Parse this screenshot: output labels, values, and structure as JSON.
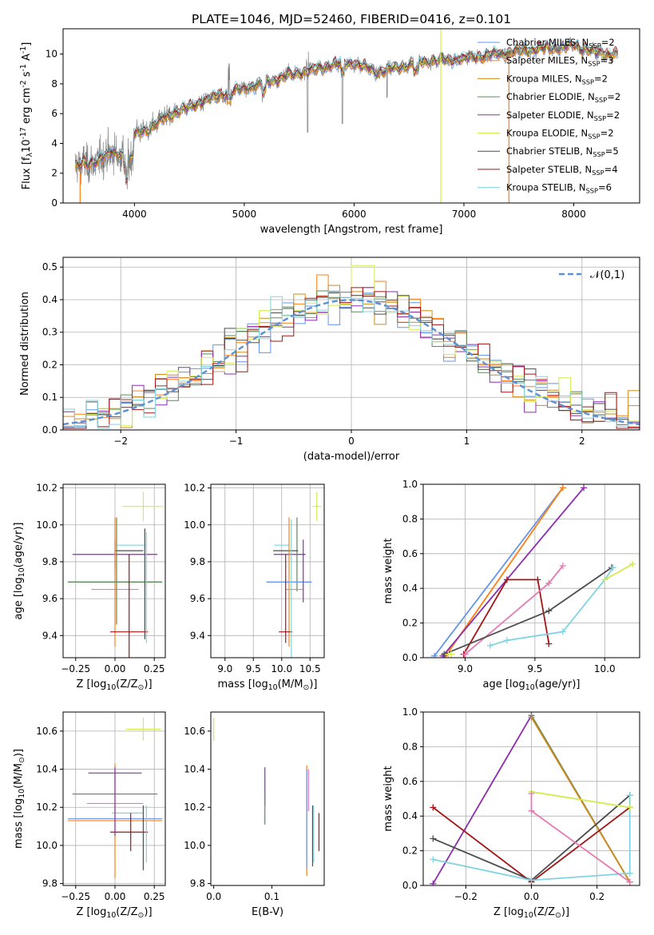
{
  "figure_title": "PLATE=1046, MJD=52460, FIBERID=0416, z=0.101",
  "colors": {
    "chabrier_miles": "#6495ed",
    "salpeter_miles": "#ff7f0e",
    "kroupa_miles": "#d08a1a",
    "chabrier_elodie": "#5a8a5a",
    "salpeter_elodie": "#8e2cb0",
    "kroupa_elodie": "#d4eb4e",
    "chabrier_stelib": "#4d4d4d",
    "salpeter_stelib": "#a31515",
    "kroupa_stelib": "#80d4e0",
    "pink": "#e67ab4",
    "data": "#808080"
  },
  "chart_data": [
    {
      "type": "line",
      "panel": "spectrum",
      "title": "PLATE=1046, MJD=52460, FIBERID=0416, z=0.101",
      "xlabel": "wavelength [Angstrom, rest frame]",
      "ylabel": "Flux [f$_\\lambda$10$^{-17}$ erg cm$^{-2}$ s$^{-1}$ A$^{-1}$]",
      "xlim": [
        3350,
        8600
      ],
      "ylim": [
        0,
        11.7
      ],
      "xticks": [
        4000,
        5000,
        6000,
        7000,
        8000
      ],
      "yticks": [
        0,
        2,
        4,
        6,
        8,
        10
      ],
      "legend_position": "top-right",
      "series": [
        {
          "name": "Chabrier MILES, N$_{SSP}$=2",
          "color": "#6495ed"
        },
        {
          "name": "Salpeter MILES, N$_{SSP}$=3",
          "color": "#ff7f0e"
        },
        {
          "name": "Kroupa MILES, N$_{SSP}$=2",
          "color": "#d08a1a"
        },
        {
          "name": "Chabrier ELODIE, N$_{SSP}$=2",
          "color": "#5a8a5a"
        },
        {
          "name": "Salpeter ELODIE, N$_{SSP}$=2",
          "color": "#8e2cb0"
        },
        {
          "name": "Kroupa ELODIE, N$_{SSP}$=2",
          "color": "#d4eb4e"
        },
        {
          "name": "Chabrier STELIB, N$_{SSP}$=5",
          "color": "#4d4d4d"
        },
        {
          "name": "Salpeter STELIB, N$_{SSP}$=4",
          "color": "#a31515"
        },
        {
          "name": "Kroupa STELIB, N$_{SSP}$=6",
          "color": "#80d4e0"
        }
      ],
      "continuum": {
        "x": [
          3450,
          3600,
          3700,
          3800,
          3900,
          4000,
          4100,
          4200,
          4300,
          4400,
          4500,
          4600,
          4800,
          5000,
          5200,
          5400,
          5600,
          5800,
          6000,
          6200,
          6400,
          6600,
          6800,
          7000,
          7200,
          7400,
          7600,
          7800,
          8000,
          8200,
          8400
        ],
        "y": [
          2.5,
          2.6,
          3.1,
          3.3,
          3.3,
          4.6,
          4.9,
          5.3,
          5.8,
          6.2,
          6.4,
          6.8,
          7.3,
          7.7,
          8.1,
          8.6,
          8.9,
          9.3,
          9.4,
          8.8,
          9.1,
          9.5,
          9.6,
          9.7,
          9.9,
          10.1,
          10.3,
          10.4,
          10.6,
          10.1,
          10.0
        ]
      }
    },
    {
      "type": "line",
      "panel": "residuals",
      "xlabel": "(data-model)/error",
      "ylabel": "Normed distribution",
      "xlim": [
        -2.5,
        2.5
      ],
      "ylim": [
        0,
        0.53
      ],
      "xticks": [
        -2,
        -1,
        0,
        1,
        2
      ],
      "yticks": [
        0.0,
        0.1,
        0.2,
        0.3,
        0.4,
        0.5
      ],
      "legend": "$\\mathcal{N}(0,1)$",
      "legend_position": "top-right",
      "grid": true,
      "histogram_bin_width": 0.1,
      "gaussian": {
        "mean": 0,
        "sigma": 1
      }
    },
    {
      "type": "scatter",
      "panel": "age-vs-Z",
      "xlabel": "Z [log$_{10}$(Z/Z$_\\odot$)]",
      "ylabel": "age  [log$_{10}$(age/yr)]",
      "xlim": [
        -0.33,
        0.32
      ],
      "ylim": [
        9.28,
        10.22
      ],
      "xticks": [
        -0.25,
        0.0,
        0.25
      ],
      "yticks": [
        9.4,
        9.6,
        9.8,
        10.0,
        10.2
      ],
      "grid": true,
      "points": [
        {
          "x": 0.18,
          "y": 10.1,
          "xerr": 0.13,
          "yerr": 0.08,
          "color": "#d4eb4e"
        },
        {
          "x": 0.0,
          "y": 9.84,
          "xerr": 0.27,
          "yerr": 0.08,
          "color": "#8e2cb0"
        },
        {
          "x": 0.09,
          "y": 9.86,
          "xerr": 0.09,
          "yerr": 0.0,
          "color": "#4d4d4d"
        },
        {
          "x": 0.1,
          "y": 9.89,
          "xerr": 0.09,
          "yerr": 0.0,
          "color": "#80d4e0"
        },
        {
          "x": 0.0,
          "y": 9.69,
          "xerr": 0.3,
          "yerr": 0.35,
          "color": "#ff7f0e"
        },
        {
          "x": 0.0,
          "y": 9.69,
          "xerr": 0.3,
          "yerr": 0.0,
          "color": "#6495ed"
        },
        {
          "x": 0.0,
          "y": 9.69,
          "xerr": 0.3,
          "yerr": 0.0,
          "color": "#5a8a5a"
        },
        {
          "x": 0.0,
          "y": 9.65,
          "xerr": 0.15,
          "yerr": 0.0,
          "color": "#e67ab4"
        },
        {
          "x": 0.09,
          "y": 9.42,
          "xerr": 0.12,
          "yerr": 0.42,
          "color": "#a31515"
        },
        {
          "x": 0.01,
          "y": 9.75,
          "xerr": 0.0,
          "yerr": 0.29,
          "color": "#5a8a5a"
        },
        {
          "x": 0.2,
          "y": 9.66,
          "xerr": 0.0,
          "yerr": 0.3,
          "color": "#80d4e0"
        },
        {
          "x": 0.19,
          "y": 9.68,
          "xerr": 0.0,
          "yerr": 0.3,
          "color": "#4d4d4d"
        }
      ]
    },
    {
      "type": "scatter",
      "panel": "age-vs-mass",
      "xlabel": "mass [log$_{10}$(M/M$_\\odot$)]",
      "xlim": [
        8.75,
        10.75
      ],
      "ylim": [
        9.28,
        10.22
      ],
      "xticks": [
        9.0,
        9.5,
        10.0,
        10.5
      ],
      "yticks": [
        9.4,
        9.6,
        9.8,
        10.0,
        10.2
      ],
      "grid": true,
      "points": [
        {
          "x": 10.62,
          "y": 10.1,
          "xerr": 0.08,
          "yerr": 0.08,
          "color": "#d4eb4e"
        },
        {
          "x": 10.14,
          "y": 9.84,
          "xerr": 0.28,
          "yerr": 0.0,
          "color": "#8e2cb0"
        },
        {
          "x": 10.27,
          "y": 9.84,
          "xerr": 0.0,
          "yerr": 0.2,
          "color": "#5a8a5a"
        },
        {
          "x": 10.07,
          "y": 9.86,
          "xerr": 0.22,
          "yerr": 0.0,
          "color": "#4d4d4d"
        },
        {
          "x": 10.0,
          "y": 9.89,
          "xerr": 0.13,
          "yerr": 0.0,
          "color": "#80d4e0"
        },
        {
          "x": 10.13,
          "y": 9.69,
          "xerr": 0.4,
          "yerr": 0.35,
          "color": "#ff7f0e"
        },
        {
          "x": 10.13,
          "y": 9.69,
          "xerr": 0.4,
          "yerr": 0.0,
          "color": "#6495ed"
        },
        {
          "x": 10.23,
          "y": 9.65,
          "xerr": 0.15,
          "yerr": 0.0,
          "color": "#e67ab4"
        },
        {
          "x": 10.07,
          "y": 9.42,
          "xerr": 0.12,
          "yerr": 0.0,
          "color": "#a31515"
        },
        {
          "x": 10.07,
          "y": 9.6,
          "xerr": 0.0,
          "yerr": 0.24,
          "color": "#a31515"
        },
        {
          "x": 10.17,
          "y": 9.63,
          "xerr": 0.0,
          "yerr": 0.4,
          "color": "#80d4e0"
        },
        {
          "x": 10.38,
          "y": 9.75,
          "xerr": 0.0,
          "yerr": 0.17,
          "color": "#8e2cb0"
        }
      ]
    },
    {
      "type": "line",
      "panel": "mass-weight-vs-age",
      "xlabel": "age  [log$_{10}$(age/yr)]",
      "ylabel": "mass weight",
      "xlim": [
        8.7,
        10.25
      ],
      "ylim": [
        0,
        1.0
      ],
      "xticks": [
        9.0,
        9.5,
        10.0
      ],
      "yticks": [
        0.0,
        0.2,
        0.4,
        0.6,
        0.8,
        1.0
      ],
      "grid": true,
      "series": [
        {
          "color": "#6495ed",
          "x": [
            8.78,
            9.7
          ],
          "y": [
            0.01,
            0.98
          ]
        },
        {
          "color": "#ff7f0e",
          "x": [
            8.86,
            9.7
          ],
          "y": [
            0.01,
            0.98
          ]
        },
        {
          "color": "#8e2cb0",
          "x": [
            8.84,
            9.85
          ],
          "y": [
            0.01,
            0.98
          ]
        },
        {
          "color": "#a31515",
          "x": [
            8.99,
            9.3,
            9.52,
            9.6
          ],
          "y": [
            0.02,
            0.45,
            0.45,
            0.08
          ]
        },
        {
          "color": "#e67ab4",
          "x": [
            9.0,
            9.6,
            9.7
          ],
          "y": [
            0.02,
            0.43,
            0.53
          ]
        },
        {
          "color": "#4d4d4d",
          "x": [
            8.85,
            9.6,
            10.05
          ],
          "y": [
            0.02,
            0.27,
            0.52
          ]
        },
        {
          "color": "#80d4e0",
          "x": [
            9.18,
            9.3,
            9.7,
            10.0,
            10.06
          ],
          "y": [
            0.07,
            0.1,
            0.15,
            0.45,
            0.52
          ]
        },
        {
          "color": "#d4eb4e",
          "x": [
            10.0,
            10.2
          ],
          "y": [
            0.45,
            0.54
          ]
        },
        {
          "color": "#d4eb4e",
          "x": [
            8.88,
            8.9
          ],
          "y": [
            0.02,
            0.02
          ]
        }
      ]
    },
    {
      "type": "scatter",
      "panel": "mass-vs-Z",
      "xlabel": "Z [log$_{10}$(Z/Z$_\\odot$)]",
      "ylabel": "mass [log$_{10}$(M/M$_\\odot$)]",
      "xlim": [
        -0.33,
        0.32
      ],
      "ylim": [
        9.79,
        10.7
      ],
      "xticks": [
        -0.25,
        0.0,
        0.25
      ],
      "yticks": [
        9.8,
        10.0,
        10.2,
        10.4,
        10.6
      ],
      "grid": true,
      "points": [
        {
          "x": 0.18,
          "y": 10.61,
          "xerr": 0.11,
          "yerr": 0.06,
          "color": "#d4eb4e"
        },
        {
          "x": 0.0,
          "y": 10.38,
          "xerr": 0.17,
          "yerr": 0.0,
          "color": "#8e2cb0"
        },
        {
          "x": 0.0,
          "y": 10.27,
          "xerr": 0.27,
          "yerr": 0.0,
          "color": "#5a8a5a"
        },
        {
          "x": 0.0,
          "y": 10.22,
          "xerr": 0.18,
          "yerr": 0.0,
          "color": "#e67ab4"
        },
        {
          "x": 0.08,
          "y": 10.17,
          "xerr": 0.1,
          "yerr": 0.0,
          "color": "#80d4e0"
        },
        {
          "x": 0.0,
          "y": 10.13,
          "xerr": 0.3,
          "yerr": 0.3,
          "color": "#ff7f0e"
        },
        {
          "x": 0.0,
          "y": 10.14,
          "xerr": 0.3,
          "yerr": 0.0,
          "color": "#6495ed"
        },
        {
          "x": 0.09,
          "y": 10.07,
          "xerr": 0.12,
          "yerr": 0.0,
          "color": "#a31515"
        },
        {
          "x": 0.1,
          "y": 10.07,
          "xerr": 0.0,
          "yerr": 0.1,
          "color": "#a31515"
        },
        {
          "x": 0.0,
          "y": 10.23,
          "xerr": 0.0,
          "yerr": 0.18,
          "color": "#8e2cb0"
        },
        {
          "x": 0.18,
          "y": 10.04,
          "xerr": 0.0,
          "yerr": 0.17,
          "color": "#4d4d4d"
        },
        {
          "x": 0.2,
          "y": 10.06,
          "xerr": 0.0,
          "yerr": 0.15,
          "color": "#80d4e0"
        }
      ]
    },
    {
      "type": "scatter",
      "panel": "mass-vs-EBV",
      "xlabel": "E(B-V)",
      "xlim": [
        -0.005,
        0.19
      ],
      "ylim": [
        9.79,
        10.7
      ],
      "xticks": [
        0.0,
        0.1
      ],
      "yticks": [
        9.8,
        10.0,
        10.2,
        10.4,
        10.6
      ],
      "points": [
        {
          "x": 0.0,
          "y": 10.61,
          "yerr": 0.06,
          "color": "#d4eb4e"
        },
        {
          "x": 0.088,
          "y": 10.31,
          "yerr": 0.1,
          "color": "#8e2cb0"
        },
        {
          "x": 0.088,
          "y": 10.19,
          "yerr": 0.08,
          "color": "#5a8a5a"
        },
        {
          "x": 0.16,
          "y": 10.13,
          "yerr": 0.29,
          "color": "#ff7f0e"
        },
        {
          "x": 0.16,
          "y": 10.14,
          "yerr": 0.26,
          "color": "#6495ed"
        },
        {
          "x": 0.163,
          "y": 10.29,
          "yerr": 0.11,
          "color": "#e67ab4"
        },
        {
          "x": 0.17,
          "y": 10.05,
          "yerr": 0.16,
          "color": "#4d4d4d"
        },
        {
          "x": 0.172,
          "y": 10.06,
          "yerr": 0.15,
          "color": "#80d4e0"
        },
        {
          "x": 0.181,
          "y": 10.07,
          "yerr": 0.1,
          "color": "#a31515"
        }
      ]
    },
    {
      "type": "line",
      "panel": "mass-weight-vs-Z",
      "xlabel": "Z [log$_{10}$(Z/Z$_\\odot$)]",
      "ylabel": "mass weight",
      "xlim": [
        -0.33,
        0.33
      ],
      "ylim": [
        0,
        1.0
      ],
      "xticks": [
        -0.2,
        0.0,
        0.2
      ],
      "yticks": [
        0.0,
        0.2,
        0.4,
        0.6,
        0.8,
        1.0
      ],
      "grid": true,
      "series": [
        {
          "color": "#8e2cb0",
          "x": [
            -0.3,
            0.0
          ],
          "y": [
            0.01,
            0.98
          ]
        },
        {
          "color": "#5a8a5a",
          "x": [
            0.0,
            0.3
          ],
          "y": [
            0.98,
            0.02
          ]
        },
        {
          "color": "#d08a1a",
          "x": [
            0.0,
            0.3
          ],
          "y": [
            0.97,
            0.02
          ]
        },
        {
          "color": "#a31515",
          "x": [
            -0.3,
            0.0,
            0.3
          ],
          "y": [
            0.45,
            0.02,
            0.45
          ]
        },
        {
          "color": "#4d4d4d",
          "x": [
            -0.3,
            0.0,
            0.3
          ],
          "y": [
            0.27,
            0.03,
            0.52
          ]
        },
        {
          "color": "#80d4e0",
          "x": [
            -0.3,
            0.0,
            0.3,
            0.3
          ],
          "y": [
            0.15,
            0.03,
            0.07,
            0.52
          ]
        },
        {
          "color": "#d4eb4e",
          "x": [
            0.0,
            0.3
          ],
          "y": [
            0.54,
            0.45
          ]
        },
        {
          "color": "#e67ab4",
          "x": [
            0.0,
            0.0,
            0.3
          ],
          "y": [
            0.53,
            0.43,
            0.02
          ]
        }
      ]
    }
  ]
}
